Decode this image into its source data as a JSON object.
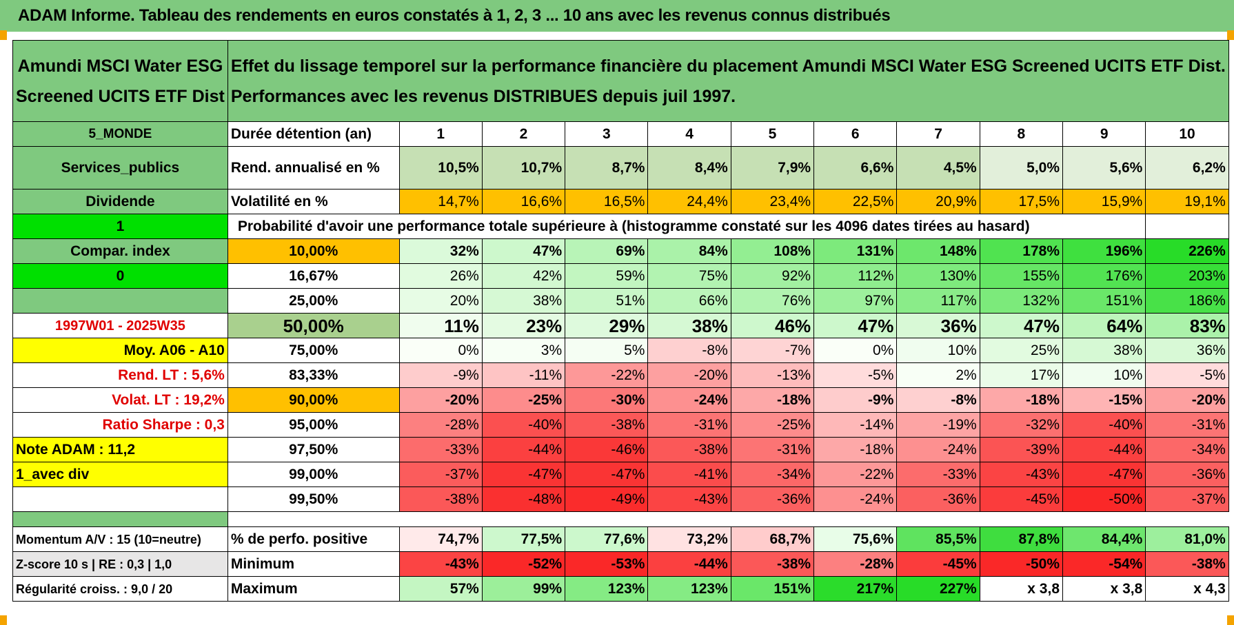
{
  "header": {
    "title": "ADAM Informe. Tableau des rendements en euros constatés à 1, 2, 3 ... 10 ans avec les revenus connus distribués"
  },
  "fund": {
    "name_line1": "Amundi MSCI Water ESG",
    "name_line2": "Screened UCITS ETF Dist",
    "desc_line1": "Effet du lissage temporel sur la performance financière du placement Amundi MSCI Water ESG Screened UCITS ETF Dist.",
    "desc_line2": "Performances avec les revenus DISTRIBUES depuis juil 1997."
  },
  "side": {
    "zone": "5_MONDE",
    "sector": "Services_publics",
    "dividend": "Dividende",
    "one": "1",
    "compar": "Compar. index",
    "zero": "0",
    "period": "1997W01 - 2025W35",
    "moy": "Moy. A06 - A10",
    "rend_lt": "Rend. LT :   5,6%",
    "volat_lt": "Volat. LT :   19,2%",
    "sharpe": "Ratio Sharpe :    0,3",
    "note": "Note ADAM : 11,2",
    "avec_div": "1_avec div",
    "momentum": "Momentum A/V : 15 (10=neutre)",
    "zscore": "Z-score 10 s | RE : 0,3 | 1,0",
    "regularite": "Régularité croiss. : 9,0 / 20"
  },
  "labels": {
    "duree": "Durée détention (an)",
    "rend": "Rend. annualisé en %",
    "volat": "Volatilité en %",
    "proba": "Probabilité d'avoir une performance totale supérieure à (histogramme constaté sur les 4096 dates tirées au hasard)",
    "perfo_pos": "% de perfo. positive",
    "minimum": "Minimum",
    "maximum": "Maximum"
  },
  "years": [
    "1",
    "2",
    "3",
    "4",
    "5",
    "6",
    "7",
    "8",
    "9",
    "10"
  ],
  "rend": [
    "10,5%",
    "10,7%",
    "8,7%",
    "8,4%",
    "7,9%",
    "6,6%",
    "4,5%",
    "5,0%",
    "5,6%",
    "6,2%"
  ],
  "volat": [
    "14,7%",
    "16,6%",
    "16,5%",
    "24,4%",
    "23,4%",
    "22,5%",
    "20,9%",
    "17,5%",
    "15,9%",
    "19,1%"
  ],
  "prob_rows": [
    {
      "p": "10,00%",
      "v": [
        "32%",
        "47%",
        "69%",
        "84%",
        "108%",
        "131%",
        "148%",
        "178%",
        "196%",
        "226%"
      ]
    },
    {
      "p": "16,67%",
      "v": [
        "26%",
        "42%",
        "59%",
        "75%",
        "92%",
        "112%",
        "130%",
        "155%",
        "176%",
        "203%"
      ]
    },
    {
      "p": "25,00%",
      "v": [
        "20%",
        "38%",
        "51%",
        "66%",
        "76%",
        "97%",
        "117%",
        "132%",
        "151%",
        "186%"
      ]
    },
    {
      "p": "50,00%",
      "v": [
        "11%",
        "23%",
        "29%",
        "38%",
        "46%",
        "47%",
        "36%",
        "47%",
        "64%",
        "83%"
      ]
    },
    {
      "p": "75,00%",
      "v": [
        "0%",
        "3%",
        "5%",
        "-8%",
        "-7%",
        "0%",
        "10%",
        "25%",
        "38%",
        "36%"
      ]
    },
    {
      "p": "83,33%",
      "v": [
        "-9%",
        "-11%",
        "-22%",
        "-20%",
        "-13%",
        "-5%",
        "2%",
        "17%",
        "10%",
        "-5%"
      ]
    },
    {
      "p": "90,00%",
      "v": [
        "-20%",
        "-25%",
        "-30%",
        "-24%",
        "-18%",
        "-9%",
        "-8%",
        "-18%",
        "-15%",
        "-20%"
      ]
    },
    {
      "p": "95,00%",
      "v": [
        "-28%",
        "-40%",
        "-38%",
        "-31%",
        "-25%",
        "-14%",
        "-19%",
        "-32%",
        "-40%",
        "-31%"
      ]
    },
    {
      "p": "97,50%",
      "v": [
        "-33%",
        "-44%",
        "-46%",
        "-38%",
        "-31%",
        "-18%",
        "-24%",
        "-39%",
        "-44%",
        "-34%"
      ]
    },
    {
      "p": "99,00%",
      "v": [
        "-37%",
        "-47%",
        "-47%",
        "-41%",
        "-34%",
        "-22%",
        "-33%",
        "-43%",
        "-47%",
        "-36%"
      ]
    },
    {
      "p": "99,50%",
      "v": [
        "-38%",
        "-48%",
        "-49%",
        "-43%",
        "-36%",
        "-24%",
        "-36%",
        "-45%",
        "-50%",
        "-37%"
      ]
    }
  ],
  "perfo_pos": [
    "74,7%",
    "77,5%",
    "77,6%",
    "73,2%",
    "68,7%",
    "75,6%",
    "85,5%",
    "87,8%",
    "84,4%",
    "81,0%"
  ],
  "minimum": [
    "-43%",
    "-52%",
    "-53%",
    "-44%",
    "-38%",
    "-28%",
    "-45%",
    "-50%",
    "-54%",
    "-38%"
  ],
  "maximum": [
    "57%",
    "99%",
    "123%",
    "123%",
    "151%",
    "217%",
    "227%",
    "x 3,8",
    "x 3,8",
    "x 4,3"
  ],
  "colors": {
    "header_green": "#7fc97f",
    "orange": "#ffc000",
    "yellow": "#ffff00",
    "bright_green": "#00e000",
    "red_text": "#e00000"
  }
}
